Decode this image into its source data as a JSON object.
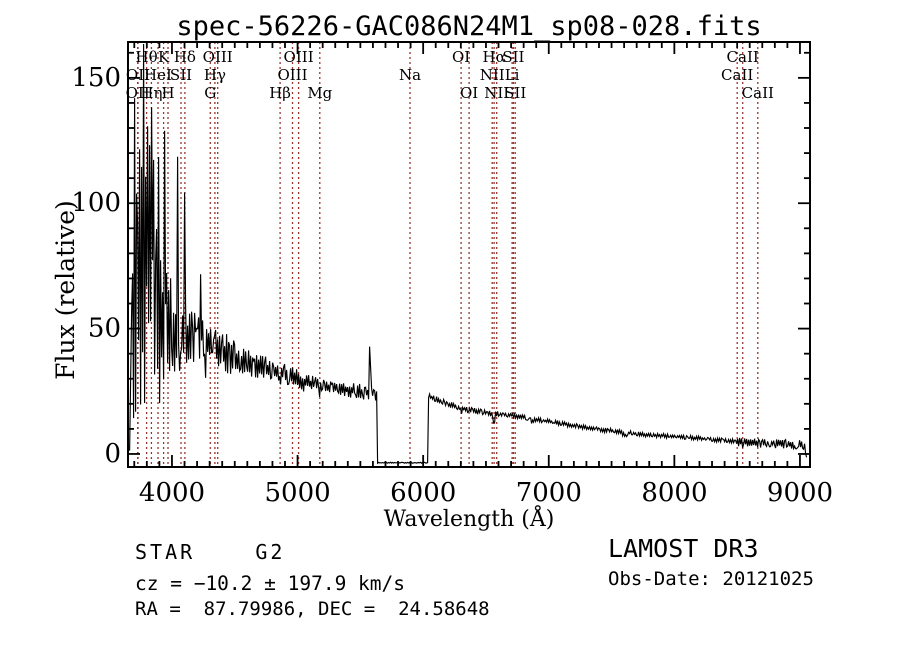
{
  "title": "spec-56226-GAC086N24M1_sp08-028.fits",
  "annotations": {
    "class_line": "STAR    G2",
    "cz_line": "cz = −10.2 ± 197.9 km/s",
    "radec_line": "RA =  87.79986, DEC =  24.58648",
    "survey_line": "LAMOST DR3",
    "obsdate_line": "Obs-Date: 20121025"
  },
  "chart_data": {
    "type": "line",
    "title": "spec-56226-GAC086N24M1_sp08-028.fits",
    "xlabel": "Wavelength (Å)",
    "ylabel": "Flux (relative)",
    "xlim": [
      3650,
      9080
    ],
    "ylim": [
      -5.2,
      164.3
    ],
    "x_major_ticks": [
      4000,
      5000,
      6000,
      7000,
      8000,
      9000
    ],
    "x_minor_step": 100,
    "y_major_ticks": [
      0,
      50,
      100,
      150
    ],
    "y_minor_step": 10,
    "grid": false,
    "legend": "none",
    "series_color": "#000000",
    "spectral_line_color": "#9a342d",
    "spectral_lines": [
      {
        "label": "OII",
        "wavelength": 3727.1,
        "row": 3
      },
      {
        "label": "OII",
        "wavelength": 3729.9,
        "row": 2
      },
      {
        "label": "Hθ",
        "wavelength": 3798.0,
        "row": 1
      },
      {
        "label": "Hη",
        "wavelength": 3836.5,
        "row": 3
      },
      {
        "label": "HeI",
        "wavelength": 3889.0,
        "row": 2
      },
      {
        "label": "K",
        "wavelength": 3933.7,
        "row": 1
      },
      {
        "label": "H",
        "wavelength": 3968.5,
        "row": 3
      },
      {
        "label": "SII",
        "wavelength": 4072.0,
        "row": 2
      },
      {
        "label": "Hδ",
        "wavelength": 4102.9,
        "row": 1
      },
      {
        "label": "G",
        "wavelength": 4305.6,
        "row": 3
      },
      {
        "label": "Hγ",
        "wavelength": 4341.7,
        "row": 2
      },
      {
        "label": "OIII",
        "wavelength": 4364.4,
        "row": 1
      },
      {
        "label": "Hβ",
        "wavelength": 4861.3,
        "row": 3
      },
      {
        "label": "OIII",
        "wavelength": 4959.9,
        "row": 2
      },
      {
        "label": "OIII",
        "wavelength": 5008.2,
        "row": 1
      },
      {
        "label": "Mg",
        "wavelength": 5176.7,
        "row": 3
      },
      {
        "label": "Na",
        "wavelength": 5895.6,
        "row": 2
      },
      {
        "label": "OI",
        "wavelength": 6302.0,
        "row": 1
      },
      {
        "label": "OI",
        "wavelength": 6365.5,
        "row": 3
      },
      {
        "label": "NII",
        "wavelength": 6549.9,
        "row": 2
      },
      {
        "label": "Hα",
        "wavelength": 6564.6,
        "row": 1
      },
      {
        "label": "NII",
        "wavelength": 6585.3,
        "row": 3
      },
      {
        "label": "Li",
        "wavelength": 6707.9,
        "row": 2
      },
      {
        "label": "SII",
        "wavelength": 6718.3,
        "row": 1
      },
      {
        "label": "SII",
        "wavelength": 6732.7,
        "row": 3
      },
      {
        "label": "CaII",
        "wavelength": 8500.4,
        "row": 2
      },
      {
        "label": "CaII",
        "wavelength": 8544.4,
        "row": 1
      },
      {
        "label": "CaII",
        "wavelength": 8664.5,
        "row": 3
      }
    ],
    "spectrum": {
      "start": 3663,
      "end": 9055,
      "seed": 7,
      "gap": {
        "from": 5630,
        "to": 6040,
        "level": -3.5,
        "noise": 0.2
      },
      "continuum": [
        [
          3662,
          -2
        ],
        [
          3668,
          18
        ],
        [
          3678,
          55
        ],
        [
          3690,
          78
        ],
        [
          3840,
          74
        ],
        [
          3855,
          64
        ],
        [
          3900,
          58
        ],
        [
          3950,
          55
        ],
        [
          4000,
          51
        ],
        [
          4060,
          49
        ],
        [
          4120,
          47
        ],
        [
          4200,
          45.5
        ],
        [
          4300,
          43.5
        ],
        [
          4400,
          41
        ],
        [
          4500,
          39
        ],
        [
          4600,
          36.5
        ],
        [
          4700,
          35
        ],
        [
          4800,
          33.5
        ],
        [
          4900,
          32
        ],
        [
          5000,
          29.5
        ],
        [
          5100,
          28.3
        ],
        [
          5200,
          27.2
        ],
        [
          5300,
          26.3
        ],
        [
          5400,
          25.6
        ],
        [
          5500,
          24.8
        ],
        [
          5630,
          24
        ],
        [
          6040,
          23
        ],
        [
          6100,
          21.8
        ],
        [
          6200,
          19.8
        ],
        [
          6300,
          18.2
        ],
        [
          6400,
          17.4
        ],
        [
          6500,
          16.4
        ],
        [
          6600,
          15.9
        ],
        [
          6700,
          15.5
        ],
        [
          6800,
          14.6
        ],
        [
          7000,
          13
        ],
        [
          7100,
          12.2
        ],
        [
          7200,
          11.3
        ],
        [
          7300,
          10.5
        ],
        [
          7400,
          9.8
        ],
        [
          7500,
          9.2
        ],
        [
          7600,
          8.6
        ],
        [
          7700,
          8.1
        ],
        [
          7800,
          7.6
        ],
        [
          7900,
          7.3
        ],
        [
          8000,
          7
        ],
        [
          8100,
          6.6
        ],
        [
          8200,
          6.2
        ],
        [
          8300,
          5.8
        ],
        [
          8400,
          5.4
        ],
        [
          8500,
          5
        ],
        [
          8600,
          4.7
        ],
        [
          8700,
          4.4
        ],
        [
          8800,
          4.2
        ],
        [
          8900,
          4
        ],
        [
          9000,
          3.8
        ],
        [
          9040,
          3.4
        ],
        [
          9048,
          0
        ],
        [
          9055,
          -3
        ]
      ],
      "noise_segments": [
        [
          3690,
          3845,
          68
        ],
        [
          3845,
          3905,
          40
        ],
        [
          3905,
          3965,
          32
        ],
        [
          3965,
          4025,
          20
        ],
        [
          4025,
          4125,
          14
        ],
        [
          4125,
          4300,
          10.5
        ],
        [
          4300,
          4500,
          8
        ],
        [
          4500,
          4750,
          5.5
        ],
        [
          4750,
          5050,
          4.2
        ],
        [
          5050,
          5632,
          3.1
        ],
        [
          6038,
          6600,
          1.25
        ],
        [
          6600,
          7600,
          0.95
        ],
        [
          7600,
          8500,
          0.9
        ],
        [
          8500,
          9057,
          1.9
        ]
      ],
      "features": [
        [
          3727,
          85,
          9
        ],
        [
          3772,
          80,
          8
        ],
        [
          3800,
          74,
          8
        ],
        [
          3850,
          68,
          8
        ],
        [
          3892,
          58,
          8
        ],
        [
          3945,
          100,
          7
        ],
        [
          4046,
          72,
          6
        ],
        [
          4101,
          46,
          6
        ],
        [
          4230,
          30,
          7
        ],
        [
          4342,
          13,
          7
        ],
        [
          5577,
          39,
          7
        ],
        [
          4066,
          -34,
          7
        ],
        [
          4263,
          -25,
          7
        ],
        [
          4861,
          -5,
          14
        ],
        [
          5172,
          -3,
          16
        ],
        [
          6302,
          -2,
          9
        ],
        [
          6564,
          -5.5,
          12
        ],
        [
          6870,
          -1.3,
          28
        ],
        [
          7605,
          -1.3,
          38
        ],
        [
          8500,
          -1,
          8
        ],
        [
          8544,
          -1,
          8
        ],
        [
          8664,
          -1,
          8
        ]
      ],
      "clip": [
        -4.6,
        163.5
      ]
    }
  }
}
